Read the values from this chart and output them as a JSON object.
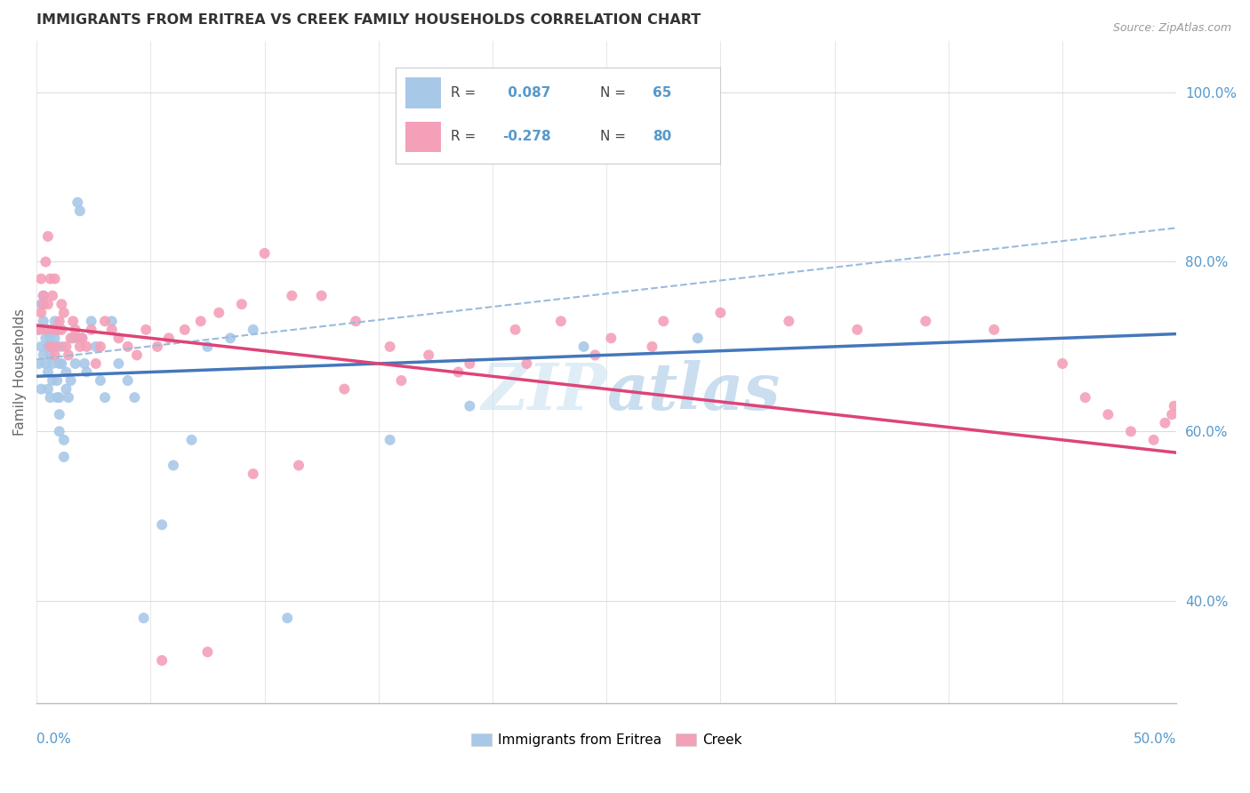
{
  "title": "IMMIGRANTS FROM ERITREA VS CREEK FAMILY HOUSEHOLDS CORRELATION CHART",
  "source": "Source: ZipAtlas.com",
  "ylabel": "Family Households",
  "right_yticks": [
    0.4,
    0.6,
    0.8,
    1.0
  ],
  "right_ytick_labels": [
    "40.0%",
    "60.0%",
    "80.0%",
    "100.0%"
  ],
  "watermark_text": "ZIPatlas",
  "blue_scatter_color": "#a8c8e8",
  "pink_scatter_color": "#f4a0b8",
  "blue_line_color": "#4477bb",
  "pink_line_color": "#dd4477",
  "dashed_line_color": "#99bbdd",
  "background_color": "#ffffff",
  "grid_color": "#dddddd",
  "title_color": "#333333",
  "axis_label_color": "#5599cc",
  "xlim": [
    0.0,
    0.5
  ],
  "ylim": [
    0.28,
    1.06
  ],
  "blue_line_x0": 0.0,
  "blue_line_y0": 0.665,
  "blue_line_x1": 0.5,
  "blue_line_y1": 0.715,
  "pink_line_x0": 0.0,
  "pink_line_y0": 0.725,
  "pink_line_x1": 0.5,
  "pink_line_y1": 0.575,
  "dashed_line_x0": 0.0,
  "dashed_line_y0": 0.685,
  "dashed_line_x1": 0.5,
  "dashed_line_y1": 0.84,
  "blue_scatter_x": [
    0.001,
    0.001,
    0.002,
    0.002,
    0.002,
    0.003,
    0.003,
    0.003,
    0.004,
    0.004,
    0.004,
    0.005,
    0.005,
    0.005,
    0.005,
    0.006,
    0.006,
    0.006,
    0.007,
    0.007,
    0.007,
    0.008,
    0.008,
    0.008,
    0.009,
    0.009,
    0.01,
    0.01,
    0.01,
    0.01,
    0.011,
    0.011,
    0.012,
    0.012,
    0.013,
    0.013,
    0.014,
    0.015,
    0.016,
    0.017,
    0.018,
    0.019,
    0.02,
    0.021,
    0.022,
    0.024,
    0.026,
    0.028,
    0.03,
    0.033,
    0.036,
    0.04,
    0.043,
    0.047,
    0.055,
    0.06,
    0.068,
    0.075,
    0.085,
    0.095,
    0.11,
    0.155,
    0.19,
    0.24,
    0.29
  ],
  "blue_scatter_y": [
    0.68,
    0.72,
    0.75,
    0.65,
    0.7,
    0.73,
    0.76,
    0.69,
    0.71,
    0.72,
    0.68,
    0.7,
    0.72,
    0.65,
    0.67,
    0.69,
    0.71,
    0.64,
    0.66,
    0.68,
    0.7,
    0.71,
    0.72,
    0.73,
    0.64,
    0.66,
    0.68,
    0.6,
    0.62,
    0.64,
    0.68,
    0.7,
    0.57,
    0.59,
    0.65,
    0.67,
    0.64,
    0.66,
    0.71,
    0.68,
    0.87,
    0.86,
    0.71,
    0.68,
    0.67,
    0.73,
    0.7,
    0.66,
    0.64,
    0.73,
    0.68,
    0.66,
    0.64,
    0.38,
    0.49,
    0.56,
    0.59,
    0.7,
    0.71,
    0.72,
    0.38,
    0.59,
    0.63,
    0.7,
    0.71
  ],
  "pink_scatter_x": [
    0.001,
    0.002,
    0.002,
    0.003,
    0.003,
    0.004,
    0.004,
    0.005,
    0.005,
    0.006,
    0.006,
    0.007,
    0.007,
    0.008,
    0.008,
    0.009,
    0.009,
    0.01,
    0.01,
    0.011,
    0.011,
    0.012,
    0.013,
    0.014,
    0.015,
    0.016,
    0.017,
    0.018,
    0.019,
    0.02,
    0.022,
    0.024,
    0.026,
    0.028,
    0.03,
    0.033,
    0.036,
    0.04,
    0.044,
    0.048,
    0.053,
    0.058,
    0.065,
    0.072,
    0.08,
    0.09,
    0.1,
    0.112,
    0.125,
    0.14,
    0.155,
    0.172,
    0.19,
    0.21,
    0.23,
    0.252,
    0.275,
    0.3,
    0.33,
    0.36,
    0.39,
    0.42,
    0.45,
    0.46,
    0.47,
    0.48,
    0.49,
    0.495,
    0.498,
    0.499,
    0.055,
    0.075,
    0.095,
    0.115,
    0.135,
    0.16,
    0.185,
    0.215,
    0.245,
    0.27
  ],
  "pink_scatter_y": [
    0.72,
    0.74,
    0.78,
    0.76,
    0.75,
    0.72,
    0.8,
    0.83,
    0.75,
    0.78,
    0.7,
    0.72,
    0.76,
    0.78,
    0.69,
    0.72,
    0.7,
    0.72,
    0.73,
    0.75,
    0.72,
    0.74,
    0.7,
    0.69,
    0.71,
    0.73,
    0.72,
    0.71,
    0.7,
    0.71,
    0.7,
    0.72,
    0.68,
    0.7,
    0.73,
    0.72,
    0.71,
    0.7,
    0.69,
    0.72,
    0.7,
    0.71,
    0.72,
    0.73,
    0.74,
    0.75,
    0.81,
    0.76,
    0.76,
    0.73,
    0.7,
    0.69,
    0.68,
    0.72,
    0.73,
    0.71,
    0.73,
    0.74,
    0.73,
    0.72,
    0.73,
    0.72,
    0.68,
    0.64,
    0.62,
    0.6,
    0.59,
    0.61,
    0.62,
    0.63,
    0.33,
    0.34,
    0.55,
    0.56,
    0.65,
    0.66,
    0.67,
    0.68,
    0.69,
    0.7
  ]
}
